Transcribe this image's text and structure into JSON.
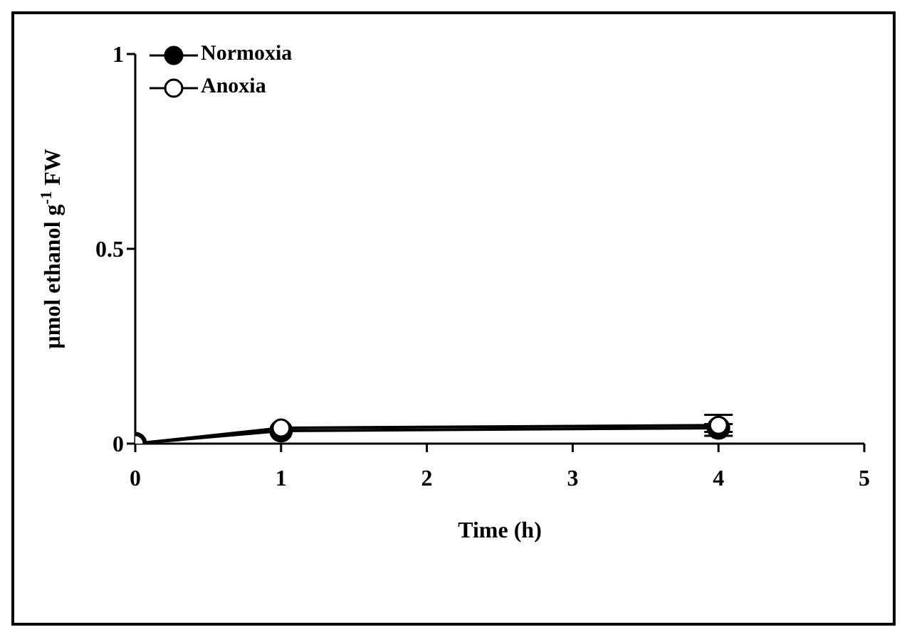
{
  "chart_data": {
    "type": "line",
    "xlabel": "Time (h)",
    "ylabel": "µmol ethanol g$^{-1}$ FW",
    "x": [
      0,
      1,
      4
    ],
    "series": [
      {
        "name": "Normoxia",
        "color": "#000000",
        "values": [
          0,
          0.033,
          0.04
        ],
        "errors": [
          null,
          null,
          0.01
        ]
      },
      {
        "name": "Anoxia",
        "color": "#000000",
        "values": [
          0,
          0.04,
          0.047
        ],
        "errors": [
          null,
          null,
          0.027
        ]
      }
    ],
    "xlim": [
      0,
      5
    ],
    "xticks": [
      0,
      1,
      2,
      3,
      4,
      5
    ],
    "ylim": [
      0,
      1
    ],
    "yticks": [
      0,
      0.5,
      1
    ],
    "grid": false,
    "legend": "top left",
    "marker": "circle",
    "line_style": "solid"
  }
}
